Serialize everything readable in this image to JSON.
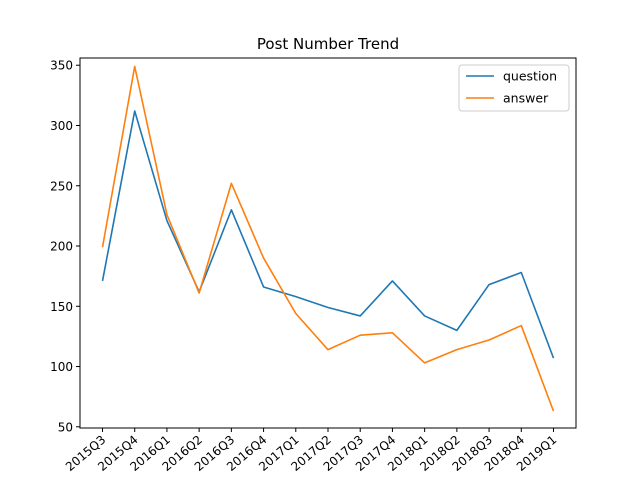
{
  "chart_data": {
    "type": "line",
    "title": "Post Number Trend",
    "xlabel": "",
    "ylabel": "",
    "categories": [
      "2015Q3",
      "2015Q4",
      "2016Q1",
      "2016Q2",
      "2016Q3",
      "2016Q4",
      "2017Q1",
      "2017Q2",
      "2017Q3",
      "2017Q4",
      "2018Q1",
      "2018Q2",
      "2018Q3",
      "2018Q4",
      "2019Q1"
    ],
    "series": [
      {
        "name": "question",
        "color": "#1f77b4",
        "values": [
          171,
          312,
          221,
          162,
          230,
          166,
          158,
          149,
          142,
          171,
          142,
          130,
          168,
          178,
          107
        ]
      },
      {
        "name": "answer",
        "color": "#ff7f0e",
        "values": [
          199,
          349,
          226,
          161,
          252,
          190,
          144,
          114,
          126,
          128,
          103,
          114,
          122,
          134,
          63
        ]
      }
    ],
    "ylim": [
      49,
      356
    ],
    "yticks": [
      50,
      100,
      150,
      200,
      250,
      300,
      350
    ],
    "grid": false,
    "legend": "top-right"
  }
}
